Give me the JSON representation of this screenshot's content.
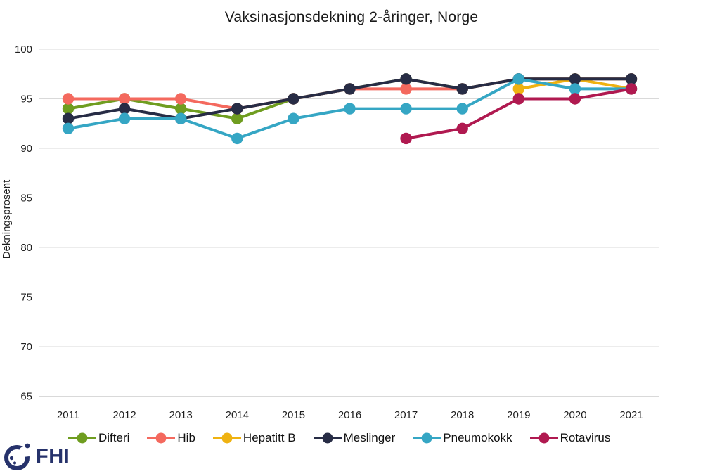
{
  "title": "Vaksinasjonsdekning 2-åringer, Norge",
  "logo": {
    "text": "FHI",
    "color": "#26326B"
  },
  "colors": {
    "grid": "#D9D9D9",
    "text": "#1f1f1f"
  },
  "chart_data": {
    "type": "line",
    "title": "Vaksinasjonsdekning 2-åringer, Norge",
    "xlabel": "",
    "ylabel": "Dekningsprosent",
    "x": [
      2011,
      2012,
      2013,
      2014,
      2015,
      2016,
      2017,
      2018,
      2019,
      2020,
      2021
    ],
    "ylim": [
      65,
      100
    ],
    "yticks": [
      100,
      95,
      90,
      85,
      80,
      75,
      70,
      65
    ],
    "grid": "horizontal",
    "legend_position": "bottom",
    "series": [
      {
        "name": "Difteri",
        "color": "#6F9D20",
        "x": [
          2011,
          2012,
          2013,
          2014,
          2015,
          2016,
          2017,
          2018,
          2019,
          2020,
          2021
        ],
        "values": [
          94,
          95,
          94,
          93,
          95,
          96,
          97,
          96,
          97,
          97,
          97
        ]
      },
      {
        "name": "Hib",
        "color": "#F4695E",
        "x": [
          2011,
          2012,
          2013,
          2014,
          2015,
          2016,
          2017,
          2018,
          2019,
          2020,
          2021
        ],
        "values": [
          95,
          95,
          95,
          94,
          95,
          96,
          96,
          96,
          97,
          97,
          97
        ]
      },
      {
        "name": "Hepatitt B",
        "color": "#EFB211",
        "x": [
          2019,
          2020,
          2021
        ],
        "values": [
          96,
          97,
          96
        ]
      },
      {
        "name": "Meslinger",
        "color": "#272C45",
        "x": [
          2011,
          2012,
          2013,
          2014,
          2015,
          2016,
          2017,
          2018,
          2019,
          2020,
          2021
        ],
        "values": [
          93,
          94,
          93,
          94,
          95,
          96,
          97,
          96,
          97,
          97,
          97
        ]
      },
      {
        "name": "Pneumokokk",
        "color": "#35A6C4",
        "x": [
          2011,
          2012,
          2013,
          2014,
          2015,
          2016,
          2017,
          2018,
          2019,
          2020,
          2021
        ],
        "values": [
          92,
          93,
          93,
          91,
          93,
          94,
          94,
          94,
          97,
          96,
          96
        ]
      },
      {
        "name": "Rotavirus",
        "color": "#B01950",
        "x": [
          2017,
          2018,
          2019,
          2020,
          2021
        ],
        "values": [
          91,
          92,
          95,
          95,
          96
        ]
      }
    ]
  }
}
